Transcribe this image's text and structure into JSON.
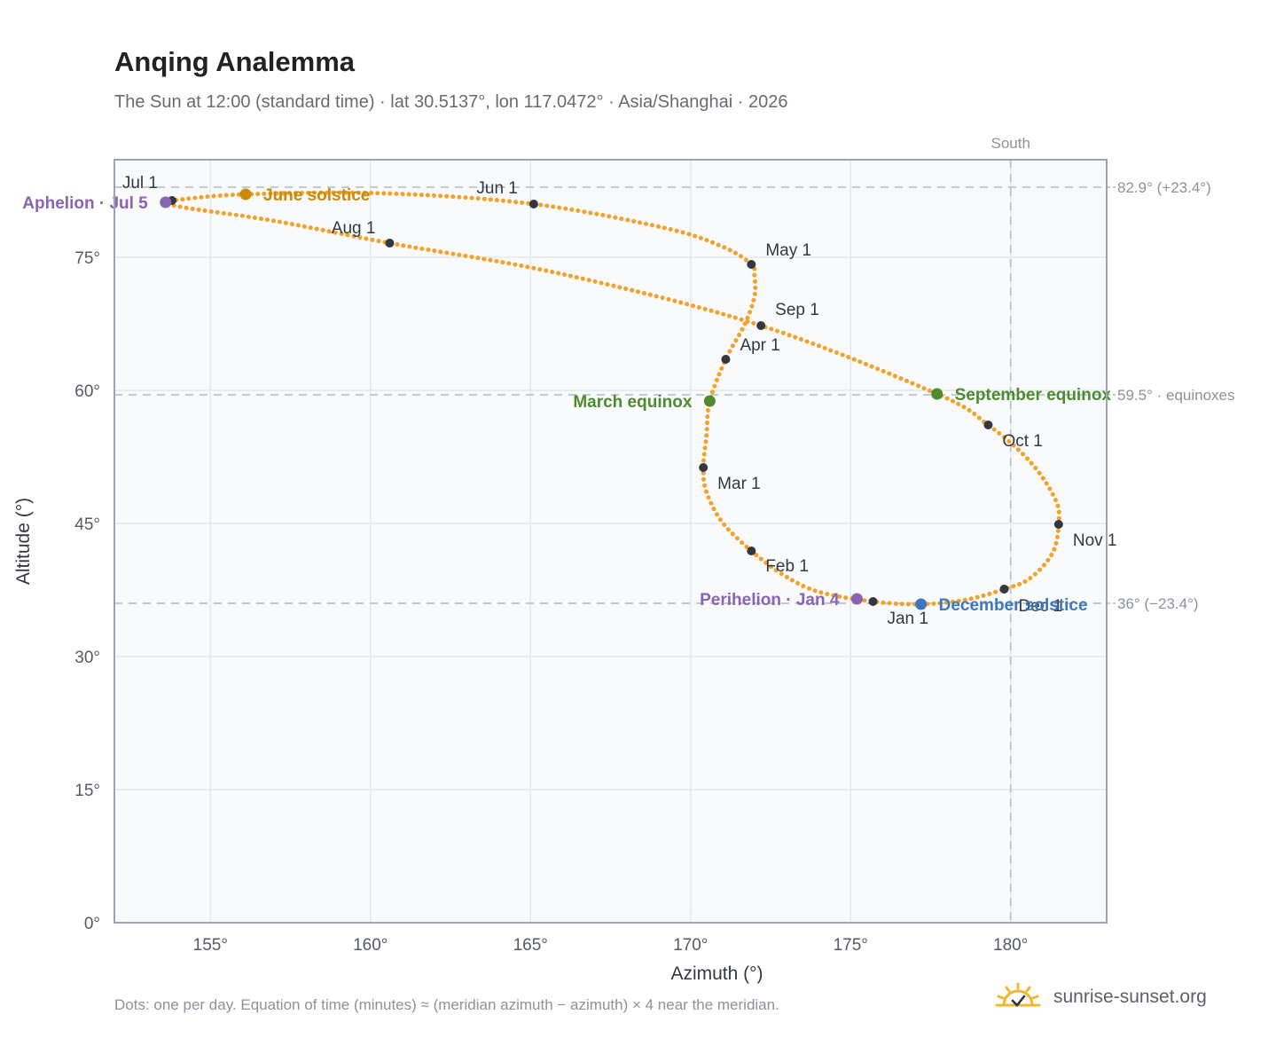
{
  "title": "Anqing Analemma",
  "subtitle": "The Sun at 12:00 (standard time) · lat 30.5137°, lon 117.0472° · Asia/Shanghai · 2026",
  "footnote": "Dots: one per day. Equation of time (minutes) ≈ (meridian azimuth − azimuth) × 4 near the meridian.",
  "brand": {
    "name": "sunrise-sunset.org",
    "icon": "sun-icon"
  },
  "colors": {
    "curve": "#f2a22a",
    "month": "#333840",
    "solstice_june": "#c98a0a",
    "equinox": "#4e8a2e",
    "december_solstice": "#3b78bf",
    "aphelion": "#8a63b5",
    "reference": "#b7c2ca",
    "grid": "#e3e8ec",
    "plot_bg": "#f8fafc",
    "frame": "#9aa5b1"
  },
  "chart_data": {
    "type": "scatter",
    "xlabel": "Azimuth (°)",
    "ylabel": "Altitude (°)",
    "xlim": [
      152,
      183
    ],
    "ylim": [
      0,
      86
    ],
    "x_ticks": [
      {
        "value": 155,
        "label": "155°"
      },
      {
        "value": 160,
        "label": "160°"
      },
      {
        "value": 165,
        "label": "165°"
      },
      {
        "value": 170,
        "label": "170°"
      },
      {
        "value": 175,
        "label": "175°"
      },
      {
        "value": 180,
        "label": "180°"
      }
    ],
    "y_ticks": [
      {
        "value": 0,
        "label": "0°"
      },
      {
        "value": 15,
        "label": "15°"
      },
      {
        "value": 30,
        "label": "30°"
      },
      {
        "value": 45,
        "label": "45°"
      },
      {
        "value": 60,
        "label": "60°"
      },
      {
        "value": 75,
        "label": "75°"
      }
    ],
    "grid": true,
    "reference_lines": [
      {
        "axis": "y",
        "value": 82.9,
        "label": "82.9° (+23.4°)"
      },
      {
        "axis": "y",
        "value": 59.5,
        "label": "59.5° · equinoxes"
      },
      {
        "axis": "y",
        "value": 36,
        "label": "36° (−23.4°)"
      },
      {
        "axis": "x",
        "value": 180,
        "label": "South"
      }
    ],
    "months": [
      {
        "label": "Jan 1",
        "x": 175.7,
        "y": 36.2
      },
      {
        "label": "Feb 1",
        "x": 171.9,
        "y": 41.9
      },
      {
        "label": "Mar 1",
        "x": 170.4,
        "y": 51.3
      },
      {
        "label": "Apr 1",
        "x": 171.1,
        "y": 63.5
      },
      {
        "label": "May 1",
        "x": 171.9,
        "y": 74.2
      },
      {
        "label": "Jun 1",
        "x": 165.1,
        "y": 81.0
      },
      {
        "label": "Jul 1",
        "x": 153.8,
        "y": 81.4
      },
      {
        "label": "Aug 1",
        "x": 160.6,
        "y": 76.6
      },
      {
        "label": "Sep 1",
        "x": 172.2,
        "y": 67.3
      },
      {
        "label": "Oct 1",
        "x": 179.3,
        "y": 56.1
      },
      {
        "label": "Nov 1",
        "x": 181.5,
        "y": 44.9
      },
      {
        "label": "Dec 1",
        "x": 179.8,
        "y": 37.6
      }
    ],
    "events": [
      {
        "label": "June solstice",
        "x": 156.1,
        "y": 82.1,
        "color": "#c98a0a",
        "side": "right"
      },
      {
        "label": "Aphelion · Jul 5",
        "x": 153.6,
        "y": 81.2,
        "color": "#8a63b5",
        "side": "left"
      },
      {
        "label": "March equinox",
        "x": 170.6,
        "y": 58.8,
        "color": "#4e8a2e",
        "side": "left"
      },
      {
        "label": "September equinox",
        "x": 177.7,
        "y": 59.6,
        "color": "#4e8a2e",
        "side": "right"
      },
      {
        "label": "Perihelion · Jan 4",
        "x": 175.2,
        "y": 36.5,
        "color": "#8a63b5",
        "side": "left"
      },
      {
        "label": "December solstice",
        "x": 177.2,
        "y": 35.9,
        "color": "#3b78bf",
        "side": "right"
      }
    ],
    "path": [
      {
        "x": 177.2,
        "y": 35.9
      },
      {
        "x": 175.7,
        "y": 36.2
      },
      {
        "x": 174.0,
        "y": 37.3
      },
      {
        "x": 172.9,
        "y": 39.2
      },
      {
        "x": 171.9,
        "y": 41.9
      },
      {
        "x": 171.0,
        "y": 45.1
      },
      {
        "x": 170.5,
        "y": 48.5
      },
      {
        "x": 170.4,
        "y": 51.3
      },
      {
        "x": 170.5,
        "y": 55.0
      },
      {
        "x": 170.6,
        "y": 58.8
      },
      {
        "x": 171.1,
        "y": 63.5
      },
      {
        "x": 171.7,
        "y": 67.5
      },
      {
        "x": 172.0,
        "y": 70.6
      },
      {
        "x": 172.0,
        "y": 72.8
      },
      {
        "x": 171.9,
        "y": 74.2
      },
      {
        "x": 171.0,
        "y": 76.2
      },
      {
        "x": 169.2,
        "y": 78.3
      },
      {
        "x": 165.1,
        "y": 81.0
      },
      {
        "x": 160.5,
        "y": 82.2
      },
      {
        "x": 156.1,
        "y": 82.1
      },
      {
        "x": 153.8,
        "y": 81.4
      },
      {
        "x": 153.6,
        "y": 81.2
      },
      {
        "x": 154.2,
        "y": 80.6
      },
      {
        "x": 157.0,
        "y": 79.1
      },
      {
        "x": 160.6,
        "y": 76.6
      },
      {
        "x": 166.0,
        "y": 73.1
      },
      {
        "x": 172.2,
        "y": 67.3
      },
      {
        "x": 177.7,
        "y": 59.6
      },
      {
        "x": 179.3,
        "y": 56.1
      },
      {
        "x": 180.6,
        "y": 52.0
      },
      {
        "x": 181.4,
        "y": 47.7
      },
      {
        "x": 181.5,
        "y": 44.9
      },
      {
        "x": 181.3,
        "y": 41.6
      },
      {
        "x": 180.6,
        "y": 38.8
      },
      {
        "x": 179.8,
        "y": 37.6
      },
      {
        "x": 178.6,
        "y": 36.4
      },
      {
        "x": 177.2,
        "y": 35.9
      }
    ]
  }
}
